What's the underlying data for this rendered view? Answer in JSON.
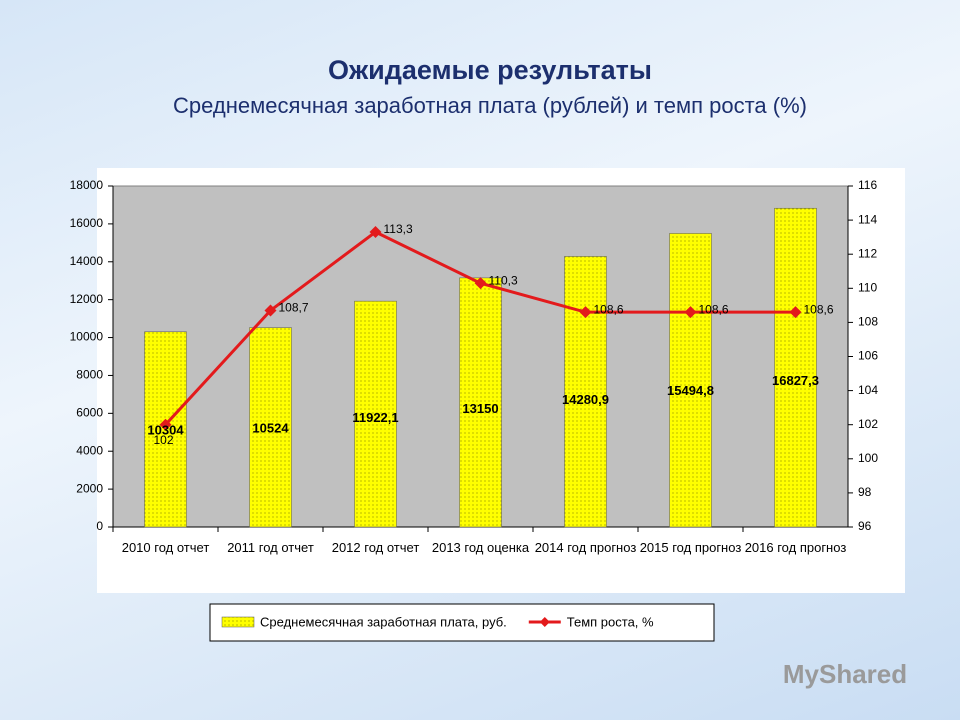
{
  "chart_data": {
    "type": "bar",
    "title": "Ожидаемые результаты",
    "subtitle": "Среднемесячная заработная плата (рублей) и темп роста (%)",
    "categories": [
      "2010 год отчет",
      "2011 год отчет",
      "2012 год отчет",
      "2013 год оценка",
      "2014 год прогноз",
      "2015 год прогноз",
      "2016 год прогноз"
    ],
    "series": [
      {
        "name": "Среднемесячная заработная плата, руб.",
        "type": "bar",
        "color": "#ffff00",
        "values": [
          10304,
          10524,
          11922.1,
          13150,
          14280.9,
          15494.8,
          16827.3
        ],
        "value_labels": [
          "10304",
          "10524",
          "11922,1",
          "13150",
          "14280,9",
          "15494,8",
          "16827,3"
        ]
      },
      {
        "name": "Темп роста, %",
        "type": "line",
        "axis": "y2",
        "color": "#e31a1c",
        "values": [
          102,
          108.7,
          113.3,
          110.3,
          108.6,
          108.6,
          108.6
        ],
        "value_labels": [
          "102",
          "108,7",
          "113,3",
          "110,3",
          "108,6",
          "108,6",
          "108,6"
        ]
      }
    ],
    "ylim": [
      0,
      18000
    ],
    "yticks": [
      0,
      2000,
      4000,
      6000,
      8000,
      10000,
      12000,
      14000,
      16000,
      18000
    ],
    "y2lim": [
      96,
      116
    ],
    "y2ticks": [
      96,
      98,
      100,
      102,
      104,
      106,
      108,
      110,
      112,
      114,
      116
    ],
    "legend": "bottom",
    "watermark": "MyShared"
  }
}
